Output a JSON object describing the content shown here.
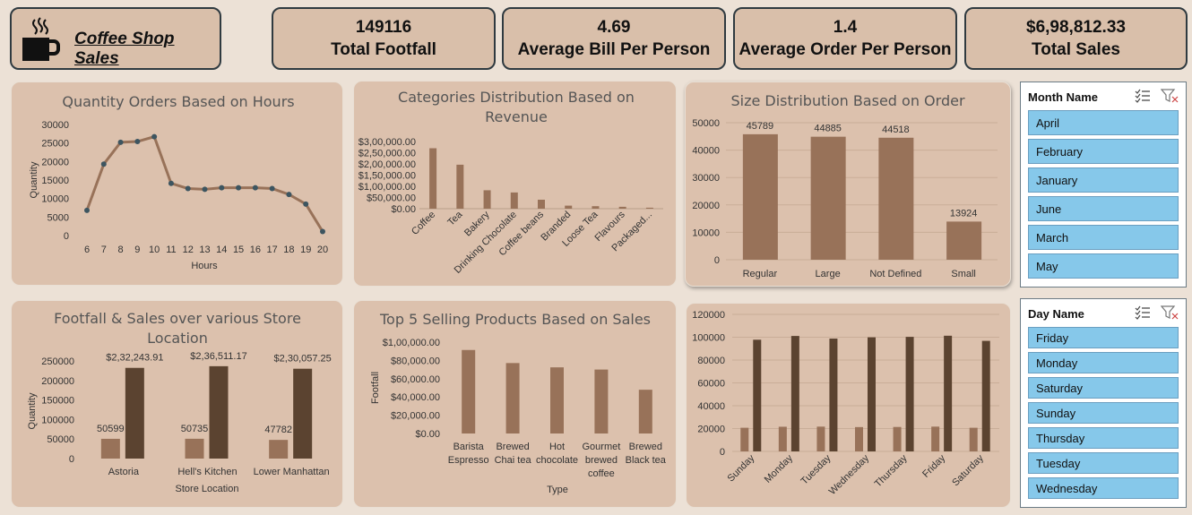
{
  "brand": {
    "title": "Coffee Shop Sales",
    "icon": "coffee-cup-icon"
  },
  "kpis": [
    {
      "value": "149116",
      "label": "Total Footfall"
    },
    {
      "value": "4.69",
      "label": "Average Bill Per Person"
    },
    {
      "value": "1.4",
      "label": "Average Order Per Person"
    },
    {
      "value": "$6,98,812.33",
      "label": "Total Sales"
    }
  ],
  "colors": {
    "bar_light": "#987259",
    "bar_dark": "#5b4330",
    "line": "#987259",
    "marker": "#3d5560",
    "panel": "#dcc1ad",
    "slicer_item": "#86c8ea"
  },
  "chart_data": [
    {
      "id": "hours",
      "type": "line",
      "title": "Quantity Orders Based on Hours",
      "xlabel": "Hours",
      "ylabel": "Quantity",
      "x": [
        "6",
        "7",
        "8",
        "9",
        "10",
        "11",
        "12",
        "13",
        "14",
        "15",
        "16",
        "17",
        "18",
        "19",
        "20"
      ],
      "values": [
        6800,
        19300,
        25200,
        25400,
        26700,
        14100,
        12700,
        12500,
        12900,
        12900,
        12900,
        12700,
        11100,
        8500,
        1100
      ],
      "yticks": [
        "0",
        "5000",
        "10000",
        "15000",
        "20000",
        "25000",
        "30000"
      ],
      "ylim": [
        0,
        30000
      ],
      "markers": true
    },
    {
      "id": "categories",
      "type": "bar",
      "title": "Categories Distribution Based on Revenue",
      "title_lines": [
        "Categories Distribution Based on",
        "Revenue"
      ],
      "categories": [
        "Coffee",
        "Tea",
        "Bakery",
        "Drinking Chocolate",
        "Coffee beans",
        "Branded",
        "Loose Tea",
        "Flavours",
        "Packaged..."
      ],
      "values": [
        269952,
        196405,
        82316,
        72416,
        40085,
        13607,
        11213,
        8408,
        4407
      ],
      "yticks": [
        "$0.00",
        "$50,000.00",
        "$1,00,000.00",
        "$1,50,000.00",
        "$2,00,000.00",
        "$2,50,000.00",
        "$3,00,000.00"
      ],
      "ylim": [
        0,
        300000
      ]
    },
    {
      "id": "sizes",
      "type": "bar",
      "title": "Size Distribution Based on Order",
      "categories": [
        "Regular",
        "Large",
        "Not Defined",
        "Small"
      ],
      "values": [
        45789,
        44885,
        44518,
        13924
      ],
      "data_labels": [
        "45789",
        "44885",
        "44518",
        "13924"
      ],
      "yticks": [
        "0",
        "10000",
        "20000",
        "30000",
        "40000",
        "50000"
      ],
      "ylim": [
        0,
        50000
      ]
    },
    {
      "id": "stores",
      "type": "bar",
      "title": "Footfall & Sales over various Store Location",
      "title_lines": [
        "Footfall & Sales over various Store",
        "Location"
      ],
      "xlabel": "Store Location",
      "ylabel": "Quantity",
      "categories": [
        "Astoria",
        "Hell's Kitchen",
        "Lower Manhattan"
      ],
      "series": [
        {
          "values": [
            50599,
            50735,
            47782
          ],
          "labels": [
            "50599",
            "50735",
            "47782"
          ]
        },
        {
          "values": [
            232243.91,
            236511.17,
            230057.25
          ],
          "labels": [
            "$2,32,243.91",
            "$2,36,511.17",
            "$2,30,057.25"
          ]
        }
      ],
      "yticks": [
        "0",
        "50000",
        "100000",
        "150000",
        "200000",
        "250000"
      ],
      "ylim": [
        0,
        250000
      ]
    },
    {
      "id": "products",
      "type": "bar",
      "title": "Top 5 Selling Products Based on Sales",
      "xlabel": "Type",
      "ylabel": "Footfall",
      "categories": [
        [
          "Barista",
          "Espresso"
        ],
        [
          "Brewed",
          "Chai tea"
        ],
        [
          "Hot",
          "chocolate"
        ],
        [
          "Gourmet",
          "brewed",
          "coffee"
        ],
        [
          "Brewed",
          "Black tea"
        ]
      ],
      "values": [
        91400,
        77100,
        72400,
        70000,
        47900
      ],
      "yticks": [
        "$0.00",
        "$20,000.00",
        "$40,000.00",
        "$60,000.00",
        "$80,000.00",
        "$1,00,000.00"
      ],
      "ylim": [
        0,
        100000
      ]
    },
    {
      "id": "weekdays",
      "type": "bar",
      "categories": [
        "Sunday",
        "Monday",
        "Tuesday",
        "Wednesday",
        "Thursday",
        "Friday",
        "Saturday"
      ],
      "series": [
        {
          "values": [
            20700,
            21600,
            21700,
            21300,
            21400,
            21700,
            20700
          ]
        },
        {
          "values": [
            97800,
            101100,
            98800,
            99900,
            100300,
            101300,
            96800
          ]
        }
      ],
      "yticks": [
        "0",
        "20000",
        "40000",
        "60000",
        "80000",
        "100000",
        "120000"
      ],
      "ylim": [
        0,
        120000
      ]
    }
  ],
  "slicers": [
    {
      "title": "Month Name",
      "items": [
        "April",
        "February",
        "January",
        "June",
        "March",
        "May"
      ]
    },
    {
      "title": "Day Name",
      "items": [
        "Friday",
        "Monday",
        "Saturday",
        "Sunday",
        "Thursday",
        "Tuesday",
        "Wednesday"
      ]
    }
  ]
}
